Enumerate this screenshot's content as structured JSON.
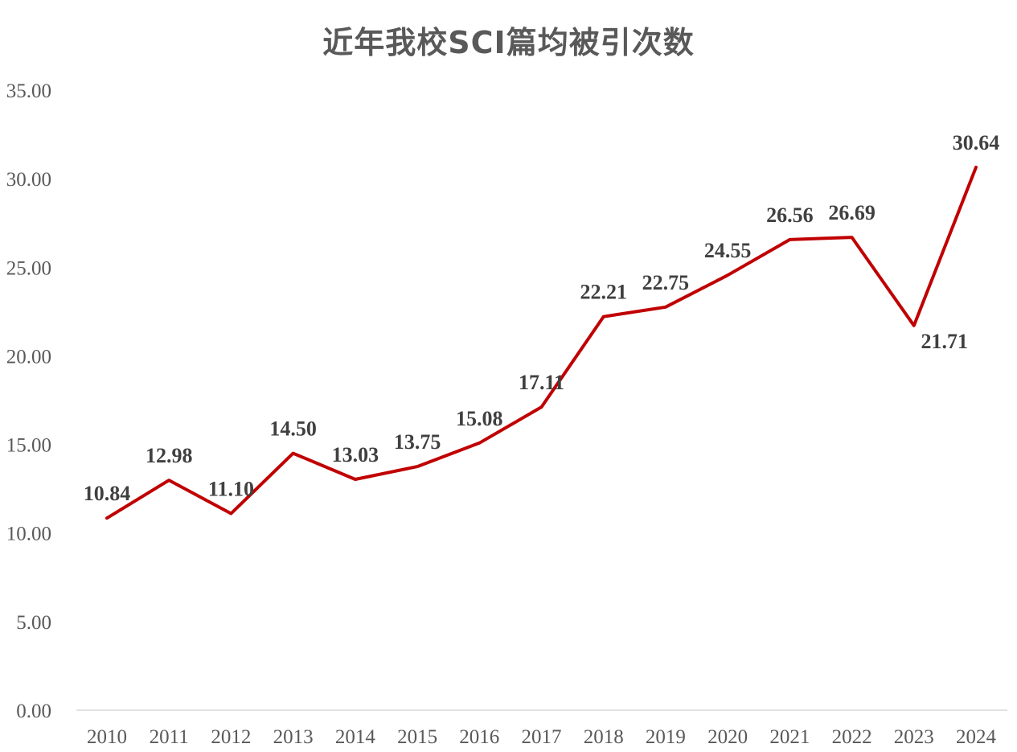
{
  "chart_data": {
    "type": "line",
    "title": "近年我校SCI篇均被引次数",
    "xlabel": "",
    "ylabel": "",
    "categories": [
      "2010",
      "2011",
      "2012",
      "2013",
      "2014",
      "2015",
      "2016",
      "2017",
      "2018",
      "2019",
      "2020",
      "2021",
      "2022",
      "2023",
      "2024"
    ],
    "series": [
      {
        "values": [
          10.84,
          12.98,
          11.1,
          14.5,
          13.03,
          13.75,
          15.08,
          17.11,
          22.21,
          22.75,
          24.55,
          26.56,
          26.69,
          21.71,
          30.64
        ],
        "value_labels": [
          "10.84",
          "12.98",
          "11.10",
          "14.50",
          "13.03",
          "13.75",
          "15.08",
          "17.11",
          "22.21",
          "22.75",
          "24.55",
          "26.56",
          "26.69",
          "21.71",
          "30.64"
        ],
        "color": "#c00000"
      }
    ],
    "ylim": [
      0,
      35
    ],
    "yticks": [
      0,
      5,
      10,
      15,
      20,
      25,
      30,
      35
    ],
    "ytick_labels": [
      "0.00",
      "5.00",
      "10.00",
      "15.00",
      "20.00",
      "25.00",
      "30.00",
      "35.00"
    ],
    "grid": false,
    "legend": "none",
    "axis_color": "#d9d9d9",
    "text_color": "#595959"
  }
}
